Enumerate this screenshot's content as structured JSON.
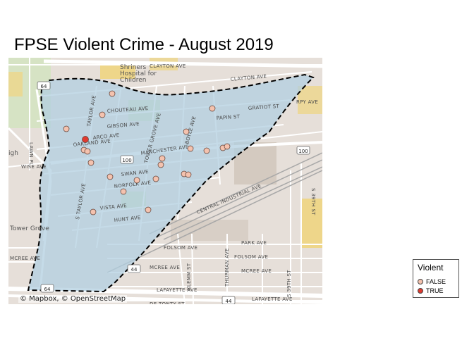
{
  "title": "FPSE Violent Crime - August 2019",
  "attribution": "© Mapbox, © OpenStreetMap",
  "legend": {
    "title": "Violent",
    "items": [
      {
        "label": "FALSE",
        "color": "#f4c2ae"
      },
      {
        "label": "TRUE",
        "color": "#e03a2f"
      }
    ]
  },
  "colors": {
    "basemap": "#e6dfd9",
    "boundary_fill": "#b2cfe0",
    "boundary_stroke": "#000000",
    "point_false": "#f4c2ae",
    "point_true": "#e03a2f",
    "park": "#c8ddb2",
    "industrial": "#d8cfc6",
    "highway": "#ffffff",
    "rail": "#9a9a9a",
    "building_yellow": "#eed68a"
  },
  "streets": [
    "CLAYTON AVE",
    "CLAYTON AVE",
    "CHOUTEAU AVE",
    "GIBSON AVE",
    "GRATIOT ST",
    "PAPIN ST",
    "ARCO AVE",
    "OAKLAND AVE",
    "MANCHESTER AVE",
    "SWAN AVE",
    "NORFOLK AVE",
    "VISTA AVE",
    "HUNT AVE",
    "TOWER GROVE AVE",
    "TAYLOR AVE",
    "S TAYLOR AVE",
    "BOYLE AVE",
    "CENTRAL INDUSTRIAL AVE",
    "PARK AVE",
    "FOLSOM AVE",
    "FOLSOM AVE",
    "MCREE AVE",
    "MCREE AVE",
    "LAFAYETTE AVE",
    "LAFAYETTE AVE",
    "DE TONTY ST",
    "KLEMM ST",
    "THURMAN AVE",
    "S 39TH ST",
    "S 39TH ST",
    "LAWN PL",
    "WISE AVE",
    "MCREE AVE",
    "RPY AVE"
  ],
  "places": [
    "Shriners Hospital for Children",
    "Tower Grove",
    "igh"
  ],
  "route_shields": [
    "100",
    "100",
    "64",
    "44",
    "44",
    "64"
  ],
  "incidents": [
    {
      "violent": false
    },
    {
      "violent": false
    },
    {
      "violent": false
    },
    {
      "violent": false
    },
    {
      "violent": true
    },
    {
      "violent": false
    },
    {
      "violent": false
    },
    {
      "violent": false
    },
    {
      "violent": false
    },
    {
      "violent": false
    },
    {
      "violent": false
    },
    {
      "violent": false
    },
    {
      "violent": false
    },
    {
      "violent": false
    },
    {
      "violent": false
    },
    {
      "violent": false
    },
    {
      "violent": false
    },
    {
      "violent": false
    },
    {
      "violent": false
    },
    {
      "violent": false
    },
    {
      "violent": false
    },
    {
      "violent": false
    },
    {
      "violent": false
    }
  ]
}
